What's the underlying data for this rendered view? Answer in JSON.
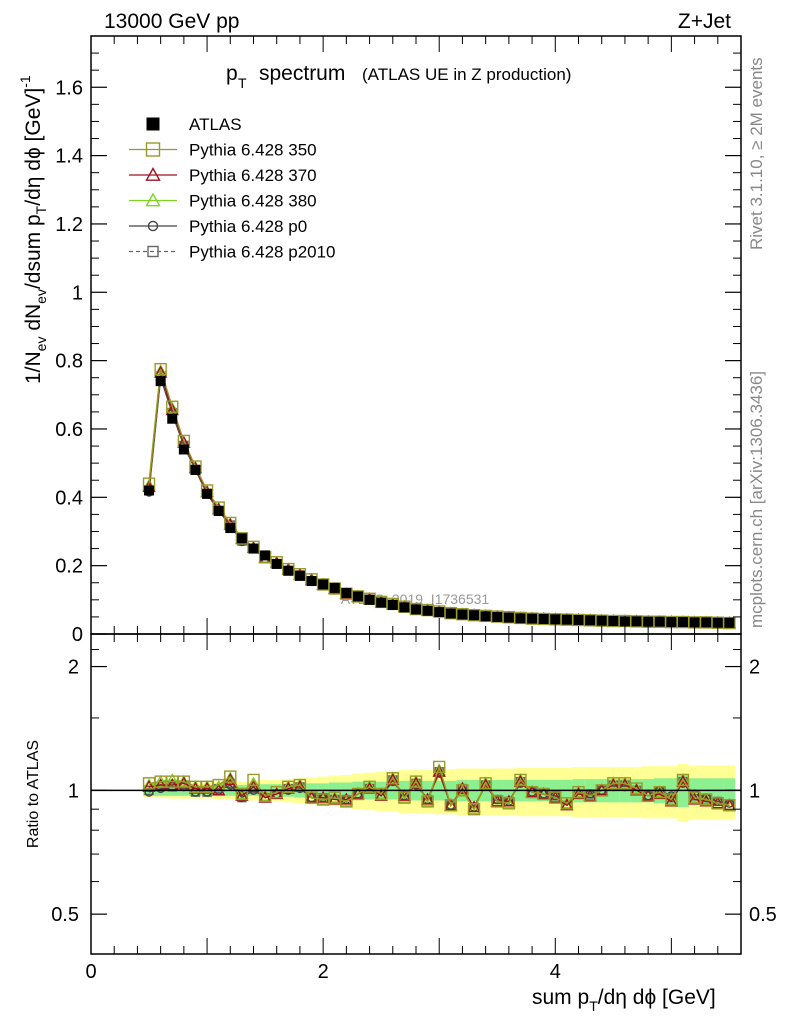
{
  "header": {
    "left": "13000 GeV pp",
    "right": "Z+Jet"
  },
  "side_labels": {
    "rivet": "Rivet 3.1.10, ≥ 2M events",
    "mcplots": "mcplots.cern.ch [arXiv:1306.3436]"
  },
  "watermark": "ATLAS_2019_I1736531",
  "chart_data": [
    {
      "type": "line",
      "panel": "main",
      "title_main": "p",
      "title_sub": "T",
      "title_rest": "spectrum",
      "title_note": "(ATLAS UE in Z production)",
      "xlabel": "sum pT/dη dϕ [GeV]",
      "ylabel": "1/Nev dNev/dsum pT/dη dϕ [GeV]^-1",
      "xlim": [
        0,
        5.6
      ],
      "ylim": [
        0,
        1.75
      ],
      "yticks": [
        "0",
        "0.2",
        "0.4",
        "0.6",
        "0.8",
        "1",
        "1.2",
        "1.4",
        "1.6"
      ],
      "xticks": [
        "0",
        "2",
        "4"
      ],
      "x": [
        0.5,
        0.6,
        0.7,
        0.8,
        0.9,
        1.0,
        1.1,
        1.2,
        1.3,
        1.4,
        1.5,
        1.6,
        1.7,
        1.8,
        1.9,
        2.0,
        2.1,
        2.2,
        2.3,
        2.4,
        2.5,
        2.6,
        2.7,
        2.8,
        2.9,
        3.0,
        3.1,
        3.2,
        3.3,
        3.4,
        3.5,
        3.6,
        3.7,
        3.8,
        3.9,
        4.0,
        4.1,
        4.2,
        4.3,
        4.4,
        4.5,
        4.6,
        4.7,
        4.8,
        4.9,
        5.0,
        5.1,
        5.2,
        5.3,
        5.4,
        5.5
      ],
      "series": [
        {
          "name": "ATLAS",
          "color": "#000000",
          "marker": "filled-square",
          "values": [
            0.42,
            0.74,
            0.63,
            0.54,
            0.48,
            0.41,
            0.36,
            0.31,
            0.28,
            0.25,
            0.23,
            0.205,
            0.185,
            0.17,
            0.155,
            0.145,
            0.135,
            0.12,
            0.11,
            0.1,
            0.092,
            0.085,
            0.078,
            0.072,
            0.068,
            0.064,
            0.06,
            0.057,
            0.055,
            0.052,
            0.05,
            0.048,
            0.046,
            0.045,
            0.044,
            0.043,
            0.042,
            0.041,
            0.04,
            0.039,
            0.038,
            0.037,
            0.037,
            0.036,
            0.036,
            0.035,
            0.035,
            0.034,
            0.034,
            0.033,
            0.033
          ]
        },
        {
          "name": "Pythia 6.428 350",
          "color": "#9a9a2a",
          "marker": "open-square",
          "values": [
            0.44,
            0.775,
            0.665,
            0.565,
            0.49,
            0.42,
            0.37,
            0.325,
            0.28,
            0.255,
            0.225,
            0.21,
            0.19,
            0.175,
            0.16,
            0.145,
            0.133,
            0.118,
            0.11,
            0.103,
            0.094,
            0.088,
            0.08,
            0.073,
            0.07,
            0.066,
            0.061,
            0.058,
            0.055,
            0.053,
            0.051,
            0.049,
            0.047,
            0.045,
            0.044,
            0.043,
            0.042,
            0.041,
            0.04,
            0.039,
            0.038,
            0.038,
            0.037,
            0.036,
            0.036,
            0.035,
            0.035,
            0.034,
            0.034,
            0.033,
            0.032
          ]
        },
        {
          "name": "Pythia 6.428 370",
          "color": "#a01020",
          "marker": "open-triangle",
          "values": [
            0.43,
            0.765,
            0.655,
            0.56,
            0.485,
            0.415,
            0.365,
            0.32,
            0.278,
            0.252,
            0.222,
            0.208,
            0.188,
            0.173,
            0.158,
            0.144,
            0.132,
            0.117,
            0.109,
            0.102,
            0.093,
            0.087,
            0.079,
            0.073,
            0.069,
            0.065,
            0.06,
            0.057,
            0.055,
            0.052,
            0.05,
            0.048,
            0.046,
            0.045,
            0.044,
            0.043,
            0.042,
            0.041,
            0.04,
            0.039,
            0.038,
            0.037,
            0.037,
            0.036,
            0.035,
            0.035,
            0.034,
            0.034,
            0.033,
            0.033,
            0.032
          ]
        },
        {
          "name": "Pythia 6.428 380",
          "color": "#7fd321",
          "marker": "open-triangle",
          "values": [
            0.435,
            0.77,
            0.66,
            0.56,
            0.487,
            0.417,
            0.367,
            0.322,
            0.279,
            0.253,
            0.223,
            0.209,
            0.189,
            0.174,
            0.159,
            0.145,
            0.133,
            0.118,
            0.11,
            0.103,
            0.094,
            0.088,
            0.08,
            0.073,
            0.07,
            0.066,
            0.061,
            0.058,
            0.055,
            0.053,
            0.051,
            0.049,
            0.047,
            0.045,
            0.044,
            0.043,
            0.042,
            0.041,
            0.04,
            0.039,
            0.038,
            0.038,
            0.037,
            0.036,
            0.036,
            0.035,
            0.035,
            0.034,
            0.034,
            0.033,
            0.032
          ]
        },
        {
          "name": "Pythia 6.428 p0",
          "color": "#444444",
          "marker": "open-circle",
          "values": [
            0.415,
            0.75,
            0.645,
            0.55,
            0.48,
            0.41,
            0.36,
            0.318,
            0.27,
            0.25,
            0.22,
            0.205,
            0.185,
            0.172,
            0.155,
            0.142,
            0.13,
            0.116,
            0.108,
            0.101,
            0.092,
            0.086,
            0.078,
            0.072,
            0.068,
            0.064,
            0.059,
            0.056,
            0.054,
            0.051,
            0.049,
            0.047,
            0.046,
            0.044,
            0.043,
            0.042,
            0.041,
            0.04,
            0.039,
            0.038,
            0.037,
            0.037,
            0.036,
            0.035,
            0.035,
            0.034,
            0.034,
            0.033,
            0.033,
            0.032,
            0.032
          ]
        },
        {
          "name": "Pythia 6.428 p2010",
          "color": "#666666",
          "marker": "open-square-dashed",
          "values": [
            0.42,
            0.755,
            0.648,
            0.552,
            0.482,
            0.412,
            0.362,
            0.319,
            0.272,
            0.251,
            0.221,
            0.206,
            0.186,
            0.173,
            0.156,
            0.143,
            0.131,
            0.117,
            0.109,
            0.102,
            0.093,
            0.087,
            0.079,
            0.073,
            0.069,
            0.065,
            0.06,
            0.057,
            0.055,
            0.052,
            0.05,
            0.048,
            0.046,
            0.045,
            0.044,
            0.043,
            0.042,
            0.041,
            0.04,
            0.039,
            0.038,
            0.037,
            0.037,
            0.036,
            0.035,
            0.035,
            0.034,
            0.034,
            0.033,
            0.033,
            0.032
          ]
        }
      ]
    },
    {
      "type": "line",
      "panel": "ratio",
      "ylabel": "Ratio to ATLAS",
      "ylim": [
        0.4,
        2.4
      ],
      "yscale": "log",
      "yticks": [
        "0.5",
        "1",
        "2"
      ],
      "x": [
        0.5,
        0.6,
        0.7,
        0.8,
        0.9,
        1.0,
        1.1,
        1.2,
        1.3,
        1.4,
        1.5,
        1.6,
        1.7,
        1.8,
        1.9,
        2.0,
        2.1,
        2.2,
        2.3,
        2.4,
        2.5,
        2.6,
        2.7,
        2.8,
        2.9,
        3.0,
        3.1,
        3.2,
        3.3,
        3.4,
        3.5,
        3.6,
        3.7,
        3.8,
        3.9,
        4.0,
        4.1,
        4.2,
        4.3,
        4.4,
        4.5,
        4.6,
        4.7,
        4.8,
        4.9,
        5.0,
        5.1,
        5.2,
        5.3,
        5.4,
        5.5
      ],
      "band_inner": [
        0.03,
        0.03,
        0.03,
        0.03,
        0.03,
        0.03,
        0.03,
        0.03,
        0.03,
        0.03,
        0.035,
        0.035,
        0.035,
        0.04,
        0.04,
        0.04,
        0.045,
        0.045,
        0.05,
        0.05,
        0.05,
        0.05,
        0.055,
        0.055,
        0.055,
        0.055,
        0.055,
        0.06,
        0.06,
        0.06,
        0.06,
        0.06,
        0.06,
        0.06,
        0.06,
        0.06,
        0.06,
        0.065,
        0.065,
        0.065,
        0.065,
        0.065,
        0.065,
        0.065,
        0.07,
        0.07,
        0.09,
        0.07,
        0.07,
        0.07,
        0.07
      ],
      "band_outer": [
        0.04,
        0.04,
        0.045,
        0.045,
        0.045,
        0.045,
        0.05,
        0.05,
        0.05,
        0.055,
        0.06,
        0.06,
        0.065,
        0.07,
        0.075,
        0.08,
        0.085,
        0.09,
        0.1,
        0.105,
        0.11,
        0.11,
        0.12,
        0.12,
        0.12,
        0.125,
        0.125,
        0.13,
        0.13,
        0.13,
        0.13,
        0.13,
        0.135,
        0.135,
        0.135,
        0.135,
        0.135,
        0.14,
        0.14,
        0.14,
        0.14,
        0.14,
        0.14,
        0.145,
        0.145,
        0.145,
        0.16,
        0.15,
        0.15,
        0.15,
        0.15
      ],
      "series": [
        {
          "name": "Pythia 6.428 350",
          "color": "#9a9a2a",
          "marker": "open-square",
          "values": [
            1.04,
            1.05,
            1.05,
            1.05,
            1.02,
            1.02,
            1.03,
            1.08,
            0.98,
            1.06,
            0.97,
            0.99,
            1.02,
            1.03,
            0.96,
            0.95,
            0.96,
            0.94,
            0.98,
            1.02,
            0.98,
            1.07,
            0.96,
            1.05,
            0.94,
            1.14,
            0.92,
            1.0,
            0.9,
            1.04,
            0.94,
            0.93,
            1.06,
            0.99,
            0.98,
            0.96,
            0.93,
            0.99,
            0.97,
            1.0,
            1.04,
            1.04,
            1.01,
            0.97,
            0.99,
            0.95,
            1.06,
            0.96,
            0.95,
            0.93,
            0.92
          ]
        },
        {
          "name": "Pythia 6.428 370",
          "color": "#a01020",
          "marker": "open-triangle",
          "values": [
            1.02,
            1.03,
            1.03,
            1.04,
            1.01,
            1.01,
            1.0,
            1.06,
            0.97,
            1.02,
            0.96,
            0.98,
            1.01,
            1.02,
            0.96,
            0.96,
            0.95,
            0.95,
            0.98,
            1.01,
            0.97,
            1.06,
            0.97,
            1.04,
            0.95,
            1.11,
            0.92,
            1.01,
            0.91,
            1.03,
            0.94,
            0.94,
            1.05,
            0.99,
            0.98,
            0.96,
            0.92,
            0.98,
            0.97,
            1.0,
            1.03,
            1.03,
            1.0,
            0.97,
            0.98,
            0.94,
            1.05,
            0.95,
            0.94,
            0.93,
            0.92
          ]
        },
        {
          "name": "Pythia 6.428 380",
          "color": "#7fd321",
          "marker": "open-triangle",
          "values": [
            1.03,
            1.05,
            1.06,
            1.05,
            1.02,
            1.02,
            1.02,
            1.07,
            0.98,
            1.04,
            0.97,
            0.98,
            1.02,
            1.03,
            0.96,
            0.95,
            0.96,
            0.94,
            0.98,
            1.02,
            0.98,
            1.07,
            0.96,
            1.05,
            0.94,
            1.12,
            0.92,
            1.0,
            0.9,
            1.04,
            0.94,
            0.93,
            1.06,
            0.99,
            0.98,
            0.96,
            0.93,
            0.99,
            0.97,
            1.0,
            1.04,
            1.04,
            1.01,
            0.97,
            0.99,
            0.95,
            1.06,
            0.96,
            0.95,
            0.93,
            0.92
          ]
        },
        {
          "name": "Pythia 6.428 p0",
          "color": "#444444",
          "marker": "open-circle",
          "values": [
            0.99,
            1.01,
            1.02,
            1.02,
            0.99,
            0.99,
            1.0,
            1.03,
            0.96,
            1.0,
            0.96,
            0.98,
            1.0,
            1.01,
            0.96,
            0.96,
            0.95,
            0.95,
            0.98,
            1.01,
            0.97,
            1.05,
            0.97,
            1.03,
            0.95,
            1.1,
            0.92,
            1.0,
            0.91,
            1.03,
            0.95,
            0.94,
            1.04,
            0.99,
            0.98,
            0.97,
            0.92,
            0.98,
            0.98,
            1.0,
            1.02,
            1.02,
            1.0,
            0.97,
            1.0,
            0.97,
            1.04,
            0.98,
            0.96,
            0.94,
            0.93
          ]
        },
        {
          "name": "Pythia 6.428 p2010",
          "color": "#666666",
          "marker": "open-square-dashed",
          "values": [
            1.0,
            1.02,
            1.02,
            1.03,
            0.99,
            0.99,
            1.01,
            1.04,
            0.96,
            1.01,
            0.96,
            0.98,
            1.01,
            1.02,
            0.96,
            0.96,
            0.95,
            0.95,
            0.98,
            1.01,
            0.97,
            1.06,
            0.97,
            1.04,
            0.95,
            1.11,
            0.92,
            1.01,
            0.91,
            1.03,
            0.95,
            0.94,
            1.05,
            0.99,
            0.98,
            0.97,
            0.92,
            0.98,
            0.98,
            1.0,
            1.03,
            1.03,
            1.0,
            0.97,
            0.99,
            0.96,
            1.05,
            0.97,
            0.95,
            0.94,
            0.92
          ]
        }
      ]
    }
  ]
}
